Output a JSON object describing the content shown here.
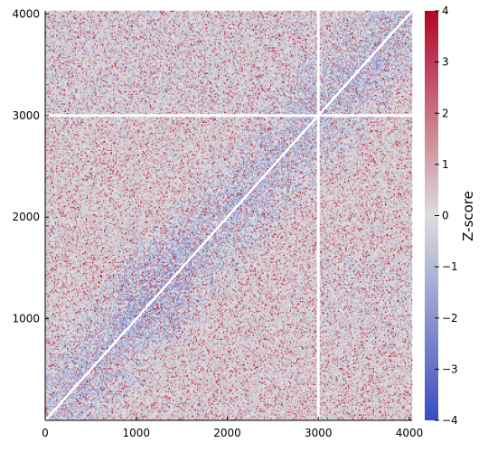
{
  "chart_data": {
    "type": "heatmap",
    "title": "",
    "xlabel": "",
    "ylabel": "",
    "xlim": [
      0,
      4030
    ],
    "ylim": [
      0,
      4030
    ],
    "x_ticks": [
      0,
      1000,
      2000,
      3000,
      4000
    ],
    "y_ticks": [
      1000,
      2000,
      3000,
      4000
    ],
    "x_tick_labels": [
      "0",
      "1000",
      "2000",
      "3000",
      "4000"
    ],
    "y_tick_labels": [
      "1000",
      "2000",
      "3000",
      "4000"
    ],
    "matrix_size": 4030,
    "white_line_position": 3000,
    "diagonal": "white line from (0,0) to (4030,4030)",
    "base_value": 0,
    "colorbar": {
      "label": "Z-score",
      "range": [
        -4,
        4
      ],
      "ticks": [
        -4,
        -3,
        -2,
        -1,
        0,
        1,
        2,
        3,
        4
      ],
      "tick_labels": [
        "−4",
        "−3",
        "−2",
        "−1",
        "0",
        "1",
        "2",
        "3",
        "4"
      ],
      "colormap": "coolwarm",
      "color_min": "#3b4cc0",
      "color_mid": "#dddddd",
      "color_max": "#b40426"
    },
    "grid": false
  }
}
